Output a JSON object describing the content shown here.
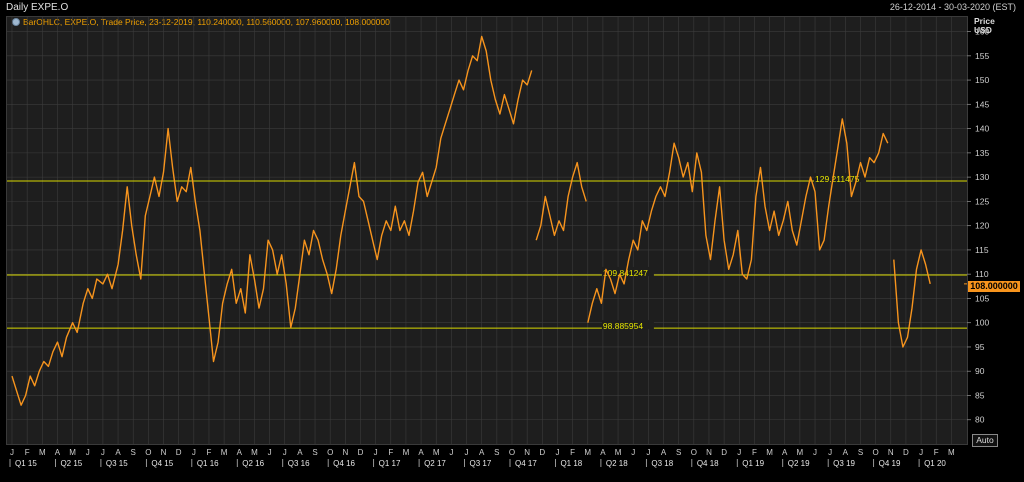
{
  "header": {
    "title": "Daily EXPE.O",
    "date_range": "26-12-2014 - 30-03-2020 (EST)"
  },
  "legend": {
    "text": "BarOHLC, EXPE.O, Trade Price, 23-12-2019, 110.240000, 110.560000, 107.960000, 108.000000",
    "icon": "series-settings-icon"
  },
  "axis": {
    "unit_line1": "Price",
    "unit_line2": "USD",
    "auto_label": "Auto"
  },
  "last_price_label": "108.000000",
  "colors": {
    "background": "#1e1e1e",
    "series": "#f7941d",
    "hlines": "#d8d800",
    "grid": "#3c3c3c"
  },
  "chart_data": {
    "type": "line",
    "title": "Daily EXPE.O",
    "ylabel": "Price USD",
    "ylim": [
      75,
      163
    ],
    "y_ticks": [
      80,
      85,
      90,
      95,
      100,
      105,
      110,
      115,
      120,
      125,
      130,
      135,
      140,
      145,
      150,
      155,
      160
    ],
    "x_start": "2015-01",
    "x_end": "2020-03",
    "month_ticks": [
      "J",
      "F",
      "M",
      "A",
      "M",
      "J",
      "J",
      "A",
      "S",
      "O",
      "N",
      "D",
      "J",
      "F",
      "M",
      "A",
      "M",
      "J",
      "J",
      "A",
      "S",
      "O",
      "N",
      "D",
      "J",
      "F",
      "M",
      "A",
      "M",
      "J",
      "J",
      "A",
      "S",
      "O",
      "N",
      "D",
      "J",
      "F",
      "M",
      "A",
      "M",
      "J",
      "J",
      "A",
      "S",
      "O",
      "N",
      "D",
      "J",
      "F",
      "M",
      "A",
      "M",
      "J",
      "J",
      "A",
      "S",
      "O",
      "N",
      "D",
      "J",
      "F",
      "M"
    ],
    "quarter_ticks": [
      "Q1 15",
      "Q2 15",
      "Q3 15",
      "Q4 15",
      "Q1 16",
      "Q2 16",
      "Q3 16",
      "Q4 16",
      "Q1 17",
      "Q2 17",
      "Q3 17",
      "Q4 17",
      "Q1 18",
      "Q2 18",
      "Q3 18",
      "Q4 18",
      "Q1 19",
      "Q2 19",
      "Q3 19",
      "Q4 19",
      "Q1 20"
    ],
    "horizontal_lines": [
      {
        "value": 129.211475,
        "label": "129.211475",
        "label_month": 53
      },
      {
        "value": 109.841247,
        "label": "109.841247",
        "label_month": 39
      },
      {
        "value": 98.885954,
        "label": "98.885954",
        "label_month": 39
      }
    ],
    "last_value": 108.0,
    "series": [
      {
        "name": "EXPE.O",
        "segments": [
          {
            "points": [
              [
                0,
                89
              ],
              [
                0.3,
                86
              ],
              [
                0.6,
                83
              ],
              [
                0.9,
                85
              ],
              [
                1.2,
                89
              ],
              [
                1.5,
                87
              ],
              [
                1.8,
                90
              ],
              [
                2.1,
                92
              ],
              [
                2.4,
                91
              ],
              [
                2.7,
                94
              ],
              [
                3.0,
                96
              ],
              [
                3.3,
                93
              ],
              [
                3.6,
                97
              ],
              [
                4.0,
                100
              ],
              [
                4.3,
                98
              ],
              [
                4.7,
                104
              ],
              [
                5.0,
                107
              ],
              [
                5.3,
                105
              ],
              [
                5.6,
                109
              ],
              [
                6.0,
                108
              ],
              [
                6.3,
                110
              ],
              [
                6.6,
                107
              ],
              [
                7.0,
                112
              ],
              [
                7.3,
                119
              ],
              [
                7.6,
                128
              ],
              [
                7.9,
                120
              ],
              [
                8.2,
                114
              ],
              [
                8.5,
                109
              ],
              [
                8.8,
                122
              ],
              [
                9.1,
                126
              ],
              [
                9.4,
                130
              ],
              [
                9.7,
                126
              ],
              [
                10.0,
                131
              ],
              [
                10.3,
                140
              ],
              [
                10.6,
                132
              ],
              [
                10.9,
                125
              ],
              [
                11.2,
                128
              ],
              [
                11.5,
                127
              ],
              [
                11.8,
                132
              ],
              [
                12.1,
                125
              ],
              [
                12.4,
                119
              ],
              [
                12.7,
                110
              ],
              [
                13.0,
                101
              ],
              [
                13.3,
                92
              ],
              [
                13.6,
                96
              ],
              [
                13.9,
                104
              ],
              [
                14.2,
                108
              ],
              [
                14.5,
                111
              ],
              [
                14.8,
                104
              ],
              [
                15.1,
                107
              ],
              [
                15.4,
                102
              ],
              [
                15.7,
                114
              ],
              [
                16.0,
                109
              ],
              [
                16.3,
                103
              ],
              [
                16.6,
                107
              ],
              [
                16.9,
                117
              ],
              [
                17.2,
                115
              ],
              [
                17.5,
                110
              ],
              [
                17.8,
                114
              ],
              [
                18.1,
                108
              ],
              [
                18.4,
                99
              ],
              [
                18.7,
                103
              ],
              [
                19.0,
                110
              ],
              [
                19.3,
                117
              ],
              [
                19.6,
                114
              ],
              [
                19.9,
                119
              ],
              [
                20.2,
                117
              ],
              [
                20.5,
                113
              ],
              [
                20.8,
                110
              ],
              [
                21.1,
                106
              ],
              [
                21.4,
                111
              ],
              [
                21.7,
                118
              ],
              [
                22.0,
                123
              ],
              [
                22.3,
                128
              ],
              [
                22.6,
                133
              ],
              [
                22.9,
                126
              ],
              [
                23.2,
                125
              ],
              [
                23.5,
                121
              ],
              [
                23.8,
                117
              ],
              [
                24.1,
                113
              ],
              [
                24.4,
                118
              ],
              [
                24.7,
                121
              ],
              [
                25.0,
                119
              ],
              [
                25.3,
                124
              ],
              [
                25.6,
                119
              ],
              [
                25.9,
                121
              ],
              [
                26.2,
                118
              ],
              [
                26.5,
                123
              ],
              [
                26.8,
                129
              ],
              [
                27.1,
                131
              ],
              [
                27.4,
                126
              ],
              [
                27.7,
                129
              ],
              [
                28.0,
                132
              ],
              [
                28.3,
                138
              ],
              [
                28.6,
                141
              ],
              [
                28.9,
                144
              ],
              [
                29.2,
                147
              ],
              [
                29.5,
                150
              ],
              [
                29.8,
                148
              ],
              [
                30.1,
                152
              ],
              [
                30.4,
                155
              ],
              [
                30.7,
                154
              ],
              [
                31.0,
                159
              ],
              [
                31.3,
                156
              ],
              [
                31.6,
                150
              ],
              [
                31.9,
                146
              ],
              [
                32.2,
                143
              ],
              [
                32.5,
                147
              ],
              [
                32.8,
                144
              ],
              [
                33.1,
                141
              ],
              [
                33.4,
                146
              ],
              [
                33.7,
                150
              ],
              [
                34.0,
                149
              ],
              [
                34.3,
                152
              ]
            ]
          },
          {
            "points": [
              [
                34.6,
                117
              ],
              [
                34.9,
                120
              ],
              [
                35.2,
                126
              ],
              [
                35.5,
                122
              ],
              [
                35.8,
                118
              ],
              [
                36.1,
                121
              ],
              [
                36.4,
                119
              ],
              [
                36.7,
                126
              ],
              [
                37.0,
                130
              ],
              [
                37.3,
                133
              ],
              [
                37.6,
                128
              ],
              [
                37.9,
                125
              ]
            ]
          },
          {
            "points": [
              [
                38.0,
                100
              ],
              [
                38.3,
                104
              ],
              [
                38.6,
                107
              ],
              [
                38.9,
                104
              ],
              [
                39.2,
                111
              ],
              [
                39.5,
                109
              ],
              [
                39.8,
                106
              ],
              [
                40.1,
                110
              ],
              [
                40.4,
                108
              ],
              [
                40.7,
                113
              ],
              [
                41.0,
                117
              ],
              [
                41.3,
                115
              ],
              [
                41.6,
                121
              ],
              [
                41.9,
                119
              ],
              [
                42.2,
                123
              ],
              [
                42.5,
                126
              ],
              [
                42.8,
                128
              ],
              [
                43.1,
                126
              ],
              [
                43.4,
                131
              ],
              [
                43.7,
                137
              ],
              [
                44.0,
                134
              ],
              [
                44.3,
                130
              ],
              [
                44.6,
                133
              ],
              [
                44.9,
                127
              ],
              [
                45.2,
                135
              ],
              [
                45.5,
                131
              ],
              [
                45.8,
                118
              ],
              [
                46.1,
                113
              ],
              [
                46.4,
                121
              ],
              [
                46.7,
                128
              ],
              [
                47.0,
                117
              ],
              [
                47.3,
                111
              ],
              [
                47.6,
                114
              ],
              [
                47.9,
                119
              ],
              [
                48.2,
                110
              ],
              [
                48.5,
                109
              ],
              [
                48.8,
                113
              ],
              [
                49.1,
                126
              ],
              [
                49.4,
                132
              ],
              [
                49.7,
                124
              ],
              [
                50.0,
                119
              ],
              [
                50.3,
                123
              ],
              [
                50.6,
                118
              ],
              [
                50.9,
                121
              ],
              [
                51.2,
                125
              ],
              [
                51.5,
                119
              ],
              [
                51.8,
                116
              ],
              [
                52.1,
                121
              ],
              [
                52.4,
                126
              ],
              [
                52.7,
                130
              ],
              [
                53.0,
                127
              ],
              [
                53.3,
                115
              ],
              [
                53.6,
                117
              ],
              [
                53.9,
                124
              ],
              [
                54.2,
                130
              ],
              [
                54.5,
                136
              ],
              [
                54.8,
                142
              ],
              [
                55.1,
                137
              ],
              [
                55.4,
                126
              ],
              [
                55.7,
                129
              ],
              [
                56.0,
                133
              ],
              [
                56.3,
                130
              ],
              [
                56.6,
                134
              ],
              [
                56.9,
                133
              ],
              [
                57.2,
                135
              ],
              [
                57.5,
                139
              ],
              [
                57.8,
                137
              ]
            ]
          },
          {
            "points": [
              [
                58.2,
                113
              ],
              [
                58.5,
                100
              ],
              [
                58.8,
                95
              ],
              [
                59.1,
                97
              ],
              [
                59.4,
                103
              ],
              [
                59.7,
                111
              ],
              [
                60.0,
                115
              ],
              [
                60.3,
                112
              ],
              [
                60.6,
                108
              ]
            ]
          }
        ]
      }
    ]
  }
}
